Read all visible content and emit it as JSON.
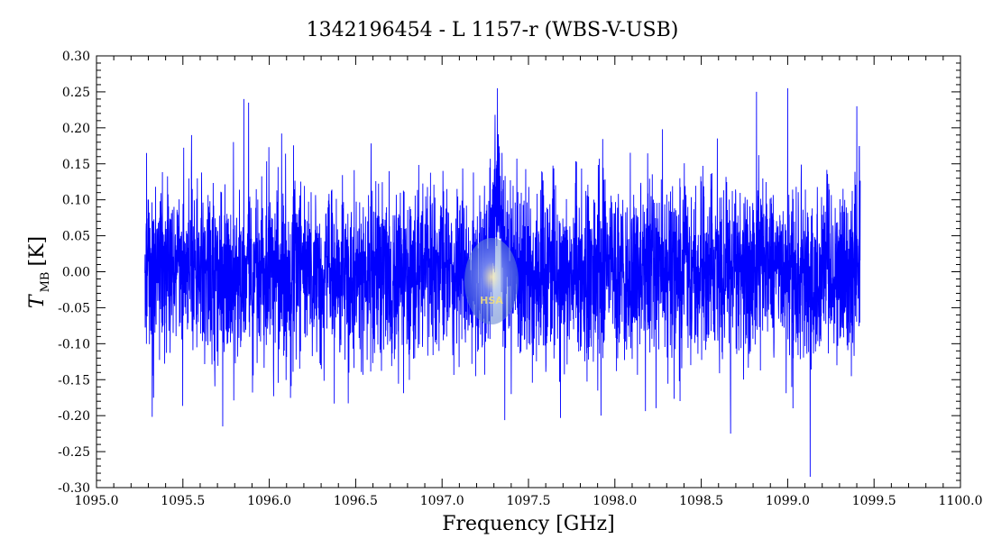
{
  "chart_data": {
    "type": "line",
    "title": "1342196454 - L 1157-r (WBS-V-USB)",
    "xlabel": "Frequency [GHz]",
    "ylabel_main": "T",
    "ylabel_sub": "MB",
    "ylabel_unit": "[K]",
    "xlim": [
      1095.0,
      1100.0
    ],
    "ylim": [
      -0.3,
      0.3
    ],
    "x_ticks": [
      "1095.0",
      "1095.5",
      "1096.0",
      "1096.5",
      "1097.0",
      "1097.5",
      "1098.0",
      "1098.5",
      "1099.0",
      "1099.5",
      "1100.0"
    ],
    "y_ticks": [
      "-0.30",
      "-0.25",
      "-0.20",
      "-0.15",
      "-0.10",
      "-0.05",
      "0.00",
      "0.05",
      "0.10",
      "0.15",
      "0.20",
      "0.25",
      "0.30"
    ],
    "grid": false,
    "series": [
      {
        "color": "#0000ff",
        "x_range": [
          1095.28,
          1099.42
        ],
        "noise_rms": 0.06,
        "x": [
          1095.29,
          1095.33,
          1095.55,
          1095.73,
          1095.88,
          1097.32,
          1097.4,
          1097.92,
          1098.67,
          1098.82,
          1099.0,
          1099.13,
          1099.4
        ],
        "y": [
          0.165,
          -0.175,
          0.19,
          -0.215,
          0.235,
          0.255,
          -0.17,
          -0.2,
          -0.225,
          0.25,
          0.255,
          -0.285,
          0.23
        ]
      }
    ],
    "watermark": "HSA"
  }
}
